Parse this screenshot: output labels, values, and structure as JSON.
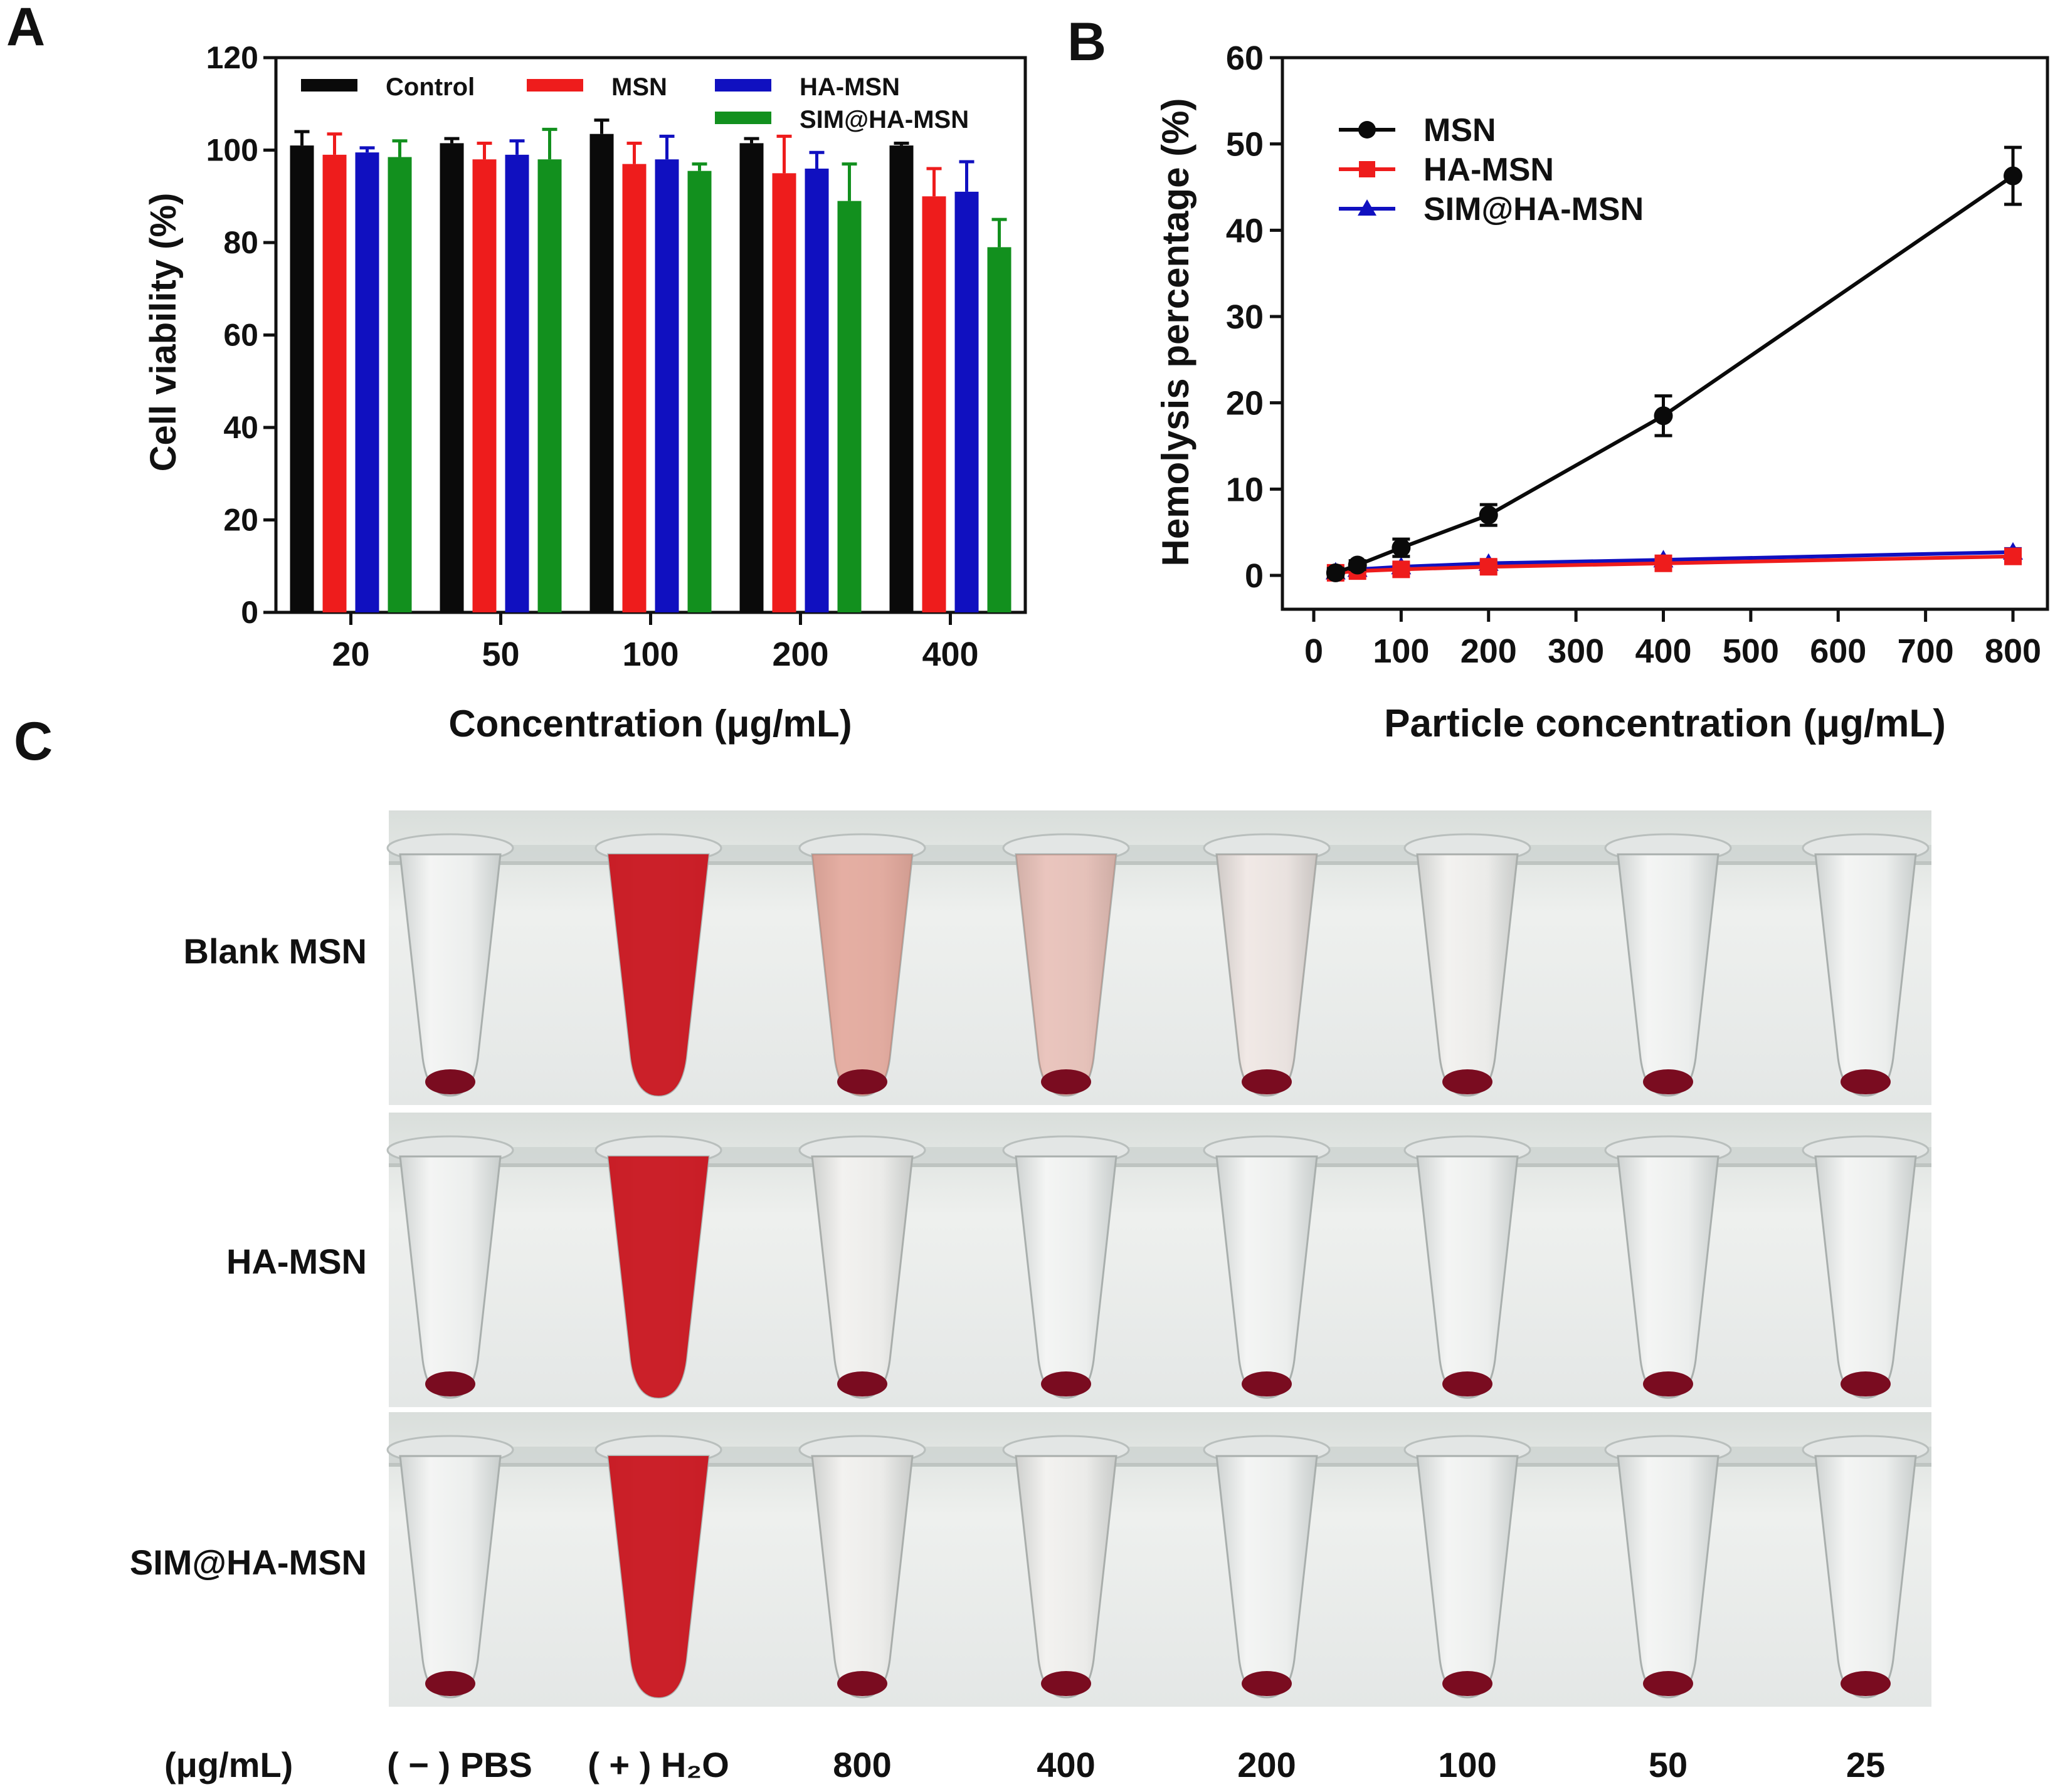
{
  "panels": {
    "a": "A",
    "b": "B",
    "c": "C"
  },
  "colors": {
    "black": "#0a0a0a",
    "red": "#ee1c1c",
    "blue": "#1010c0",
    "green": "#12901e",
    "blood": "#7a0c20",
    "lysed": "#c8141e"
  },
  "chart_data": [
    {
      "type": "bar",
      "xlabel": "Concentration (μg/mL)",
      "ylabel": "Cell viability (%)",
      "ylim": [
        0,
        120
      ],
      "yticks": [
        "0",
        "20",
        "40",
        "60",
        "80",
        "100",
        "120"
      ],
      "categories": [
        "20",
        "50",
        "100",
        "200",
        "400"
      ],
      "legend_position": "top",
      "series": [
        {
          "name": "Control",
          "color": "#0a0a0a",
          "values": [
            101,
            101.5,
            103.5,
            101.5,
            101
          ],
          "errors": [
            3,
            1,
            3,
            1,
            0.5
          ]
        },
        {
          "name": "MSN",
          "color": "#ee1c1c",
          "values": [
            99,
            98,
            97,
            95,
            90
          ],
          "errors": [
            4.5,
            3.5,
            4.5,
            8,
            6
          ]
        },
        {
          "name": "HA-MSN",
          "color": "#1010c0",
          "values": [
            99.5,
            99,
            98,
            96,
            91
          ],
          "errors": [
            1,
            3,
            5,
            3.5,
            6.5
          ]
        },
        {
          "name": "SIM@HA-MSN",
          "color": "#12901e",
          "values": [
            98.5,
            98,
            95.5,
            89,
            79
          ],
          "errors": [
            3.5,
            6.5,
            1.5,
            8,
            6
          ]
        }
      ]
    },
    {
      "type": "line",
      "xlabel": "Particle concentration (μg/mL)",
      "ylabel": "Hemolysis percentage (%)",
      "xlim": [
        0,
        800
      ],
      "ylim": [
        0,
        60
      ],
      "xticks": [
        "0",
        "100",
        "200",
        "300",
        "400",
        "500",
        "600",
        "700",
        "800"
      ],
      "yticks": [
        "0",
        "10",
        "20",
        "30",
        "40",
        "50",
        "60"
      ],
      "legend_position": "top-left",
      "x": [
        25,
        50,
        100,
        200,
        400,
        800
      ],
      "series": [
        {
          "name": "MSN",
          "color": "#0a0a0a",
          "marker": "circle",
          "values": [
            0.3,
            1.2,
            3.2,
            7.0,
            18.5,
            46.3
          ],
          "errors": [
            0.5,
            0.5,
            1.0,
            1.2,
            2.3,
            3.3
          ]
        },
        {
          "name": "HA-MSN",
          "color": "#ee1c1c",
          "marker": "square",
          "values": [
            0.3,
            0.5,
            0.7,
            1.0,
            1.4,
            2.2
          ],
          "errors": [
            0.2,
            0.2,
            0.3,
            0.3,
            0.3,
            0.3
          ]
        },
        {
          "name": "SIM@HA-MSN",
          "color": "#1010c0",
          "marker": "triangle",
          "values": [
            0.4,
            0.7,
            1.0,
            1.4,
            1.8,
            2.7
          ],
          "errors": [
            0.2,
            0.2,
            0.3,
            0.3,
            0.3,
            0.4
          ]
        }
      ]
    }
  ],
  "photo": {
    "rows": [
      "Blank MSN",
      "HA-MSN",
      "SIM@HA-MSN"
    ],
    "unit_label": "(μg/mL)",
    "columns": [
      "( − ) PBS",
      "( + ) H₂O",
      "800",
      "400",
      "200",
      "100",
      "50",
      "25"
    ],
    "supernatant_tint": [
      [
        0.0,
        1.0,
        0.45,
        0.3,
        0.08,
        0.02,
        0.0,
        0.0
      ],
      [
        0.0,
        1.0,
        0.02,
        0.0,
        0.0,
        0.0,
        0.0,
        0.0
      ],
      [
        0.0,
        1.0,
        0.02,
        0.02,
        0.0,
        0.0,
        0.0,
        0.0
      ]
    ]
  }
}
